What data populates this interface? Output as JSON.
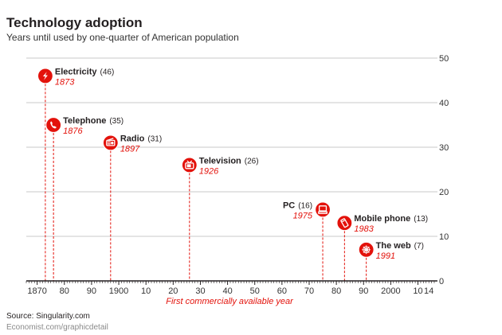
{
  "chart_data": {
    "type": "scatter",
    "title": "Technology adoption",
    "subtitle": "Years until used by one-quarter of American population",
    "xlabel": "First commercially available year",
    "ylabel": "",
    "xlim": [
      1866,
      2016
    ],
    "ylim": [
      0,
      50
    ],
    "x_ticks": [
      "1870",
      "80",
      "90",
      "1900",
      "10",
      "20",
      "30",
      "40",
      "50",
      "60",
      "70",
      "80",
      "90",
      "2000",
      "10",
      "14"
    ],
    "x_tick_values": [
      1870,
      1880,
      1890,
      1900,
      1910,
      1920,
      1930,
      1940,
      1950,
      1960,
      1970,
      1980,
      1990,
      2000,
      2010,
      2014
    ],
    "y_ticks": [
      0,
      10,
      20,
      30,
      40,
      50
    ],
    "grid": true,
    "points": [
      {
        "name": "Electricity",
        "value_label": "(46)",
        "year_label": "1873",
        "x": 1873,
        "y": 46,
        "icon": "lightning-icon",
        "label_side": "right"
      },
      {
        "name": "Telephone",
        "value_label": "(35)",
        "year_label": "1876",
        "x": 1876,
        "y": 35,
        "icon": "telephone-icon",
        "label_side": "right"
      },
      {
        "name": "Radio",
        "value_label": "(31)",
        "year_label": "1897",
        "x": 1897,
        "y": 31,
        "icon": "radio-icon",
        "label_side": "right"
      },
      {
        "name": "Television",
        "value_label": "(26)",
        "year_label": "1926",
        "x": 1926,
        "y": 26,
        "icon": "television-icon",
        "label_side": "right"
      },
      {
        "name": "PC",
        "value_label": "(16)",
        "year_label": "1975",
        "x": 1975,
        "y": 16,
        "icon": "computer-icon",
        "label_side": "left"
      },
      {
        "name": "Mobile phone",
        "value_label": "(13)",
        "year_label": "1983",
        "x": 1983,
        "y": 13,
        "icon": "mobile-phone-icon",
        "label_side": "right"
      },
      {
        "name": "The web",
        "value_label": "(7)",
        "year_label": "1991",
        "x": 1991,
        "y": 7,
        "icon": "web-icon",
        "label_side": "right"
      }
    ]
  },
  "source": "Source: Singularity.com",
  "brand": "Economist.com/graphicdetail",
  "colors": {
    "accent": "#e3120b",
    "grid": "#c8c8c8",
    "axis": "#231f20",
    "text": "#231f20"
  }
}
